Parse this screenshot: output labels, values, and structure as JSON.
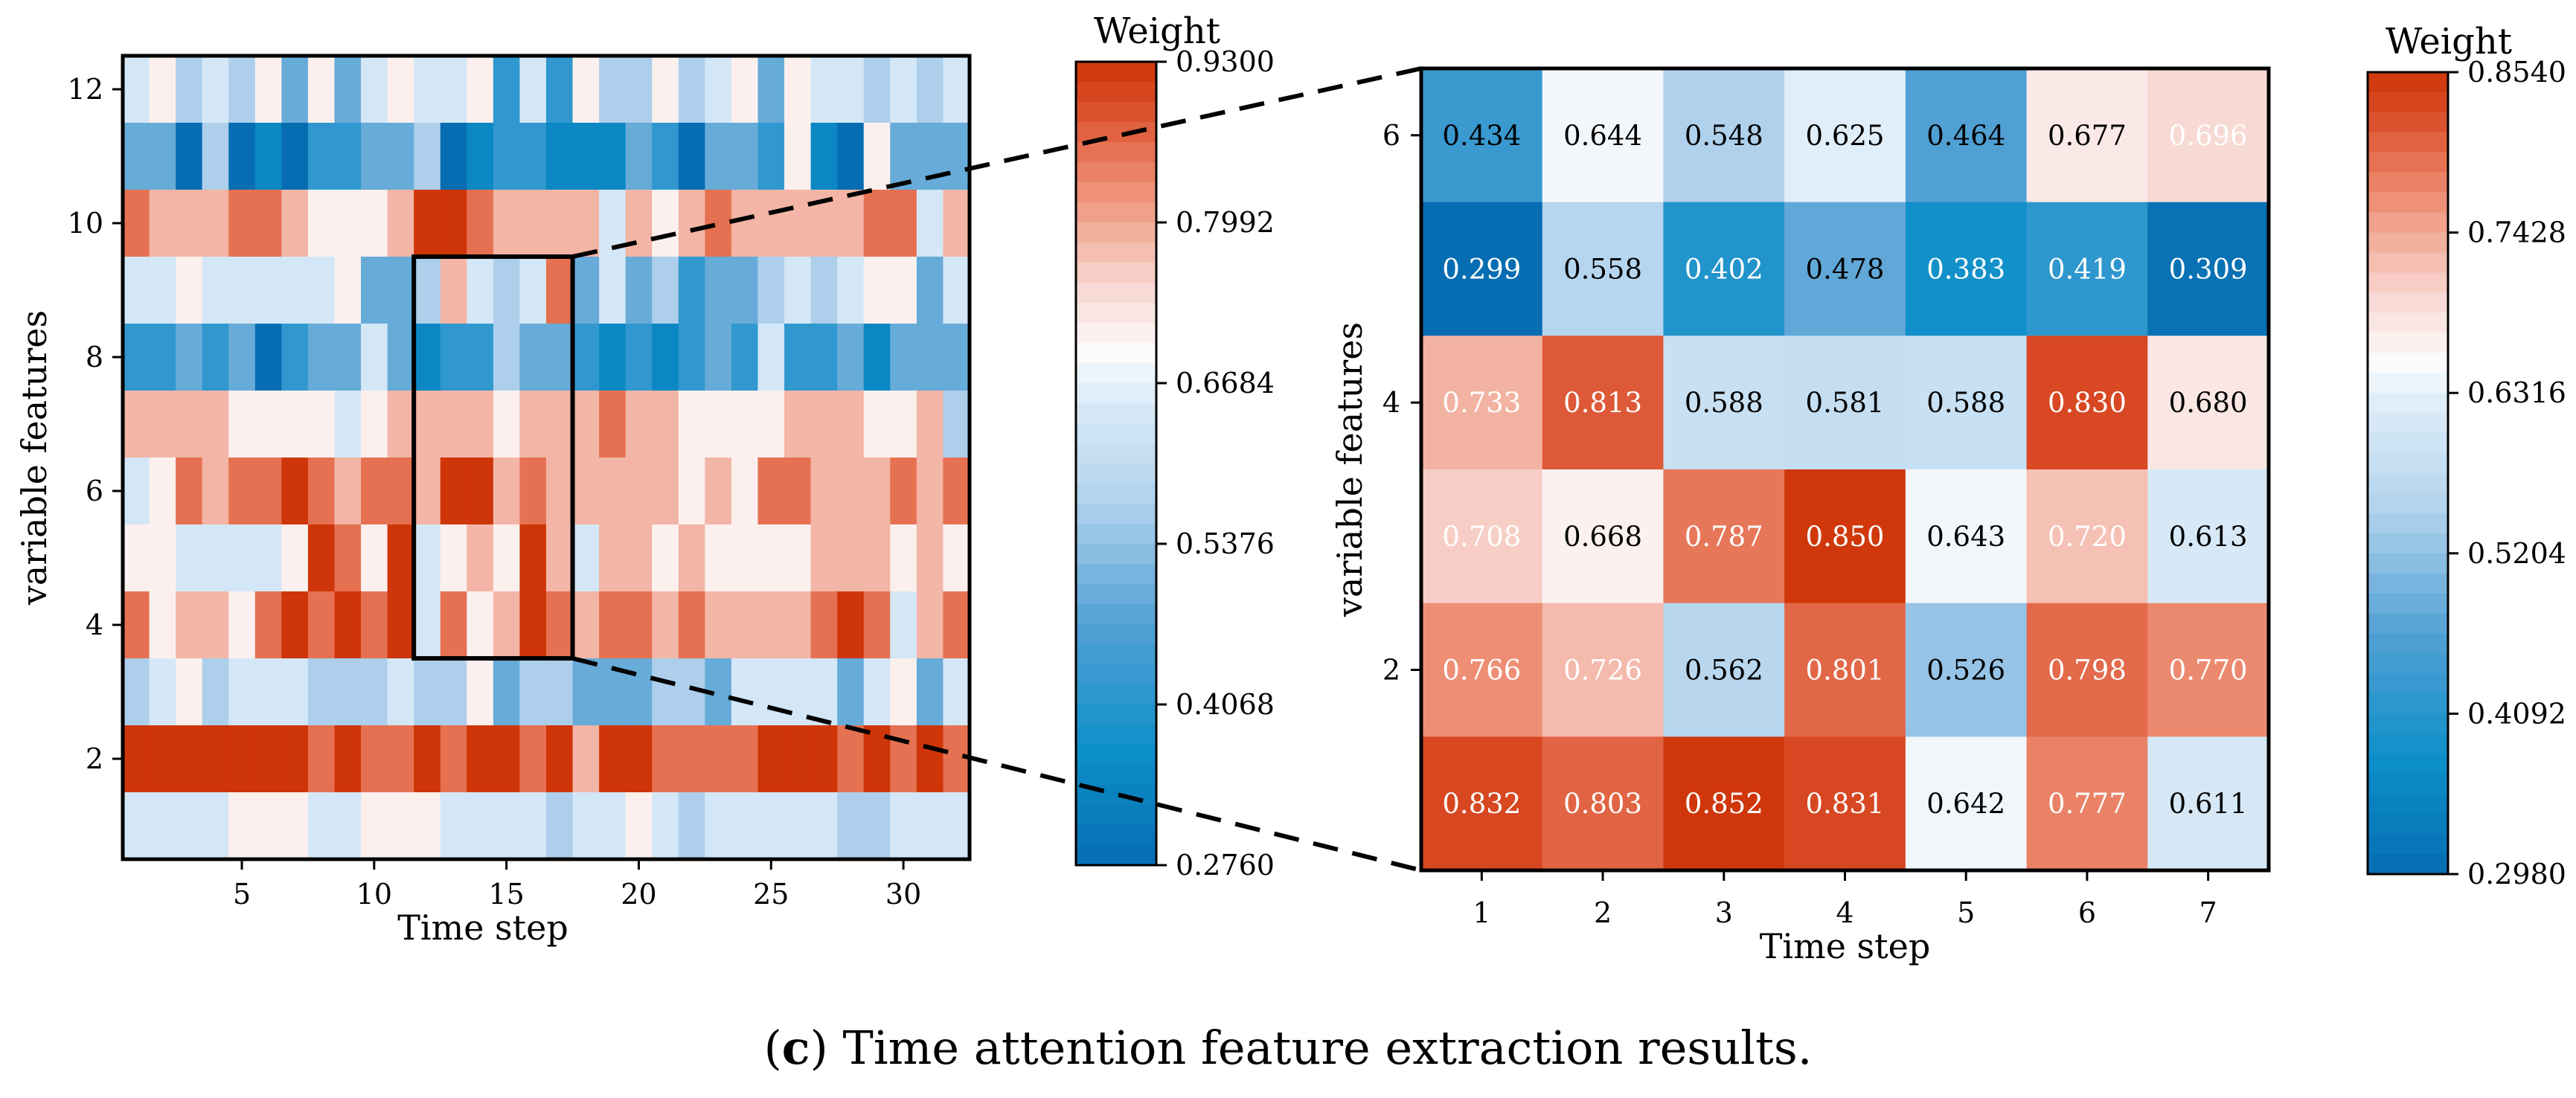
{
  "caption": {
    "letter": "c",
    "text": ") Time attention feature extraction results."
  },
  "chart_data": [
    {
      "type": "heatmap",
      "title": "",
      "xlabel": "Time step",
      "ylabel": "variable features",
      "x_range": [
        0.5,
        32.5
      ],
      "y_range": [
        0.5,
        12.5
      ],
      "xticks": [
        5,
        10,
        15,
        20,
        25,
        30
      ],
      "yticks": [
        2,
        4,
        6,
        8,
        10,
        12
      ],
      "highlight_box": {
        "x_range": [
          11.5,
          17.5
        ],
        "y_range": [
          3.5,
          9.5
        ]
      },
      "colorbar": {
        "title": "Weight",
        "min": 0.276,
        "max": 0.93,
        "ticks": [
          "0.9300",
          "0.7992",
          "0.6684",
          "0.5376",
          "0.4068",
          "0.2760"
        ]
      },
      "rows_top_to_bottom": [
        "56454636356556252644645636554545",
        "33040102233401221113203326106333",
        "87778876667998777757678777778857",
        "55655555633475458353423345456635",
        "22323023353122433212123252231333",
        "77776666567777677787766667776674",
        "56878898788799787777767688777878",
        "66555569869567697577676666777676",
        "86776898989586798788787777898578",
        "45645554445446344333443555535635",
        "99999998988989989799888899989898",
        "55556665566655554556545555544555"
      ]
    },
    {
      "type": "heatmap",
      "title": "",
      "xlabel": "Time step",
      "ylabel": "variable features",
      "x_categories": [
        "1",
        "2",
        "3",
        "4",
        "5",
        "6",
        "7"
      ],
      "yticks": [
        "2",
        "4",
        "6"
      ],
      "colorbar": {
        "title": "Weight",
        "min": 0.298,
        "max": 0.854,
        "ticks": [
          "0.8540",
          "0.7428",
          "0.6316",
          "0.5204",
          "0.4092",
          "0.2980"
        ]
      },
      "cells_top_to_bottom": [
        [
          "0.434",
          "0.644",
          "0.548",
          "0.625",
          "0.464",
          "0.677",
          "0.696"
        ],
        [
          "0.299",
          "0.558",
          "0.402",
          "0.478",
          "0.383",
          "0.419",
          "0.309"
        ],
        [
          "0.733",
          "0.813",
          "0.588",
          "0.581",
          "0.588",
          "0.830",
          "0.680"
        ],
        [
          "0.708",
          "0.668",
          "0.787",
          "0.850",
          "0.643",
          "0.720",
          "0.613"
        ],
        [
          "0.766",
          "0.726",
          "0.562",
          "0.801",
          "0.526",
          "0.798",
          "0.770"
        ],
        [
          "0.832",
          "0.803",
          "0.852",
          "0.831",
          "0.642",
          "0.777",
          "0.611"
        ]
      ]
    }
  ]
}
